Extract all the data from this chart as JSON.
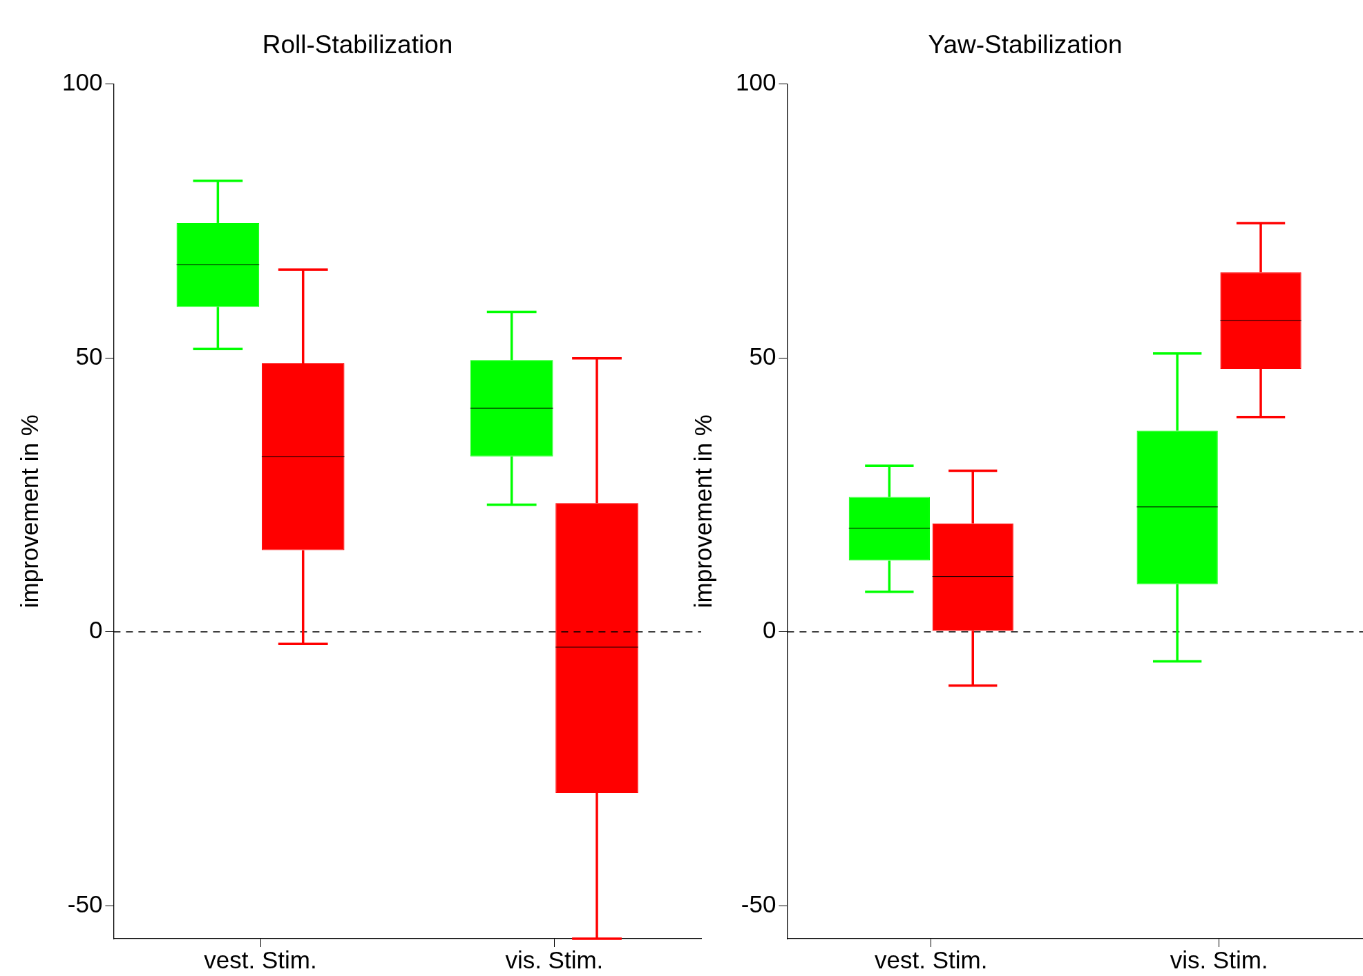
{
  "chart_data": [
    {
      "type": "box",
      "title": "Roll-Stabilization",
      "ylabel": "improvement in %",
      "categories": [
        "vest. Stim.",
        "vis. Stim."
      ],
      "ylim": [
        -56,
        100
      ],
      "yticks": [
        -50,
        0,
        50,
        100
      ],
      "grid": false,
      "legend": false,
      "ref_lines": [
        {
          "axis": "y",
          "value": 0,
          "line_style": "dashed",
          "color": "#000000"
        }
      ],
      "series": [
        {
          "color": "#00ff00",
          "boxes": [
            {
              "low": 51.6,
              "q1": 59.3,
              "median": 67,
              "q3": 74.6,
              "high": 82.3
            },
            {
              "low": 23.2,
              "q1": 32,
              "median": 40.8,
              "q3": 49.6,
              "high": 58.4
            }
          ]
        },
        {
          "color": "#ff0000",
          "boxes": [
            {
              "low": -2.2,
              "q1": 14.9,
              "median": 32,
              "q3": 49,
              "high": 66.1
            },
            {
              "low": -56,
              "q1": -29.4,
              "median": -2.8,
              "q3": 23.5,
              "high": 49.9
            }
          ]
        }
      ]
    },
    {
      "type": "box",
      "title": "Yaw-Stabilization",
      "ylabel": "improvement in %",
      "categories": [
        "vest. Stim.",
        "vis. Stim."
      ],
      "ylim": [
        -56,
        100
      ],
      "yticks": [
        -50,
        0,
        50,
        100
      ],
      "grid": false,
      "legend": false,
      "ref_lines": [
        {
          "axis": "y",
          "value": 0,
          "line_style": "dashed",
          "color": "#000000"
        }
      ],
      "series": [
        {
          "color": "#00ff00",
          "boxes": [
            {
              "low": 7.3,
              "q1": 13,
              "median": 18.9,
              "q3": 24.6,
              "high": 30.3
            },
            {
              "low": -5.4,
              "q1": 8.7,
              "median": 22.8,
              "q3": 36.7,
              "high": 50.8
            }
          ]
        },
        {
          "color": "#ff0000",
          "boxes": [
            {
              "low": -9.8,
              "q1": 0.2,
              "median": 10.1,
              "q3": 19.8,
              "high": 29.4
            },
            {
              "low": 39.2,
              "q1": 48,
              "median": 56.8,
              "q3": 65.6,
              "high": 74.6
            }
          ]
        }
      ]
    }
  ]
}
